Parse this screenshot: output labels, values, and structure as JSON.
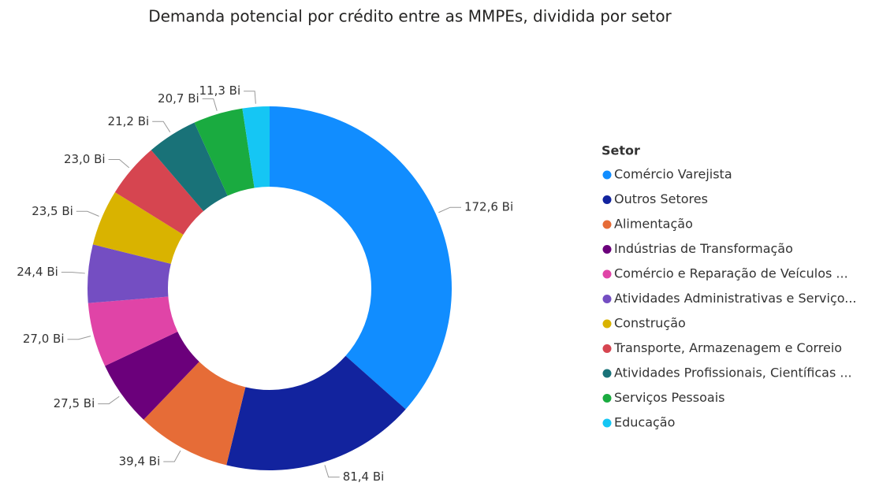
{
  "chart_data": {
    "type": "donut",
    "title": "Demanda potencial por crédito entre as MMPEs, dividida por setor",
    "legend_title": "Setor",
    "legend_position": "right",
    "categories": [
      "Comércio Varejista",
      "Outros Setores",
      "Alimentação",
      "Indústrias de Transformação",
      "Comércio e Reparação de Veículos ...",
      "Atividades Administrativas e Serviço...",
      "Construção",
      "Transporte, Armazenagem e Correio",
      "Atividades Profissionais, Científicas ...",
      "Serviços Pessoais",
      "Educação"
    ],
    "values": [
      172.6,
      81.4,
      39.4,
      27.5,
      27.0,
      24.4,
      23.5,
      23.0,
      21.2,
      20.7,
      11.3
    ],
    "value_labels": [
      "172,6 Bi",
      "81,4 Bi",
      "39,4 Bi",
      "27,5 Bi",
      "27,0 Bi",
      "24,4 Bi",
      "23,5 Bi",
      "23,0 Bi",
      "21,2 Bi",
      "20,7 Bi",
      "11,3 Bi"
    ],
    "colors": [
      "#118DFF",
      "#12239E",
      "#E66C37",
      "#6B007B",
      "#E044A7",
      "#744EC2",
      "#D9B300",
      "#D64550",
      "#197278",
      "#1AAB40",
      "#15C6F4"
    ]
  }
}
